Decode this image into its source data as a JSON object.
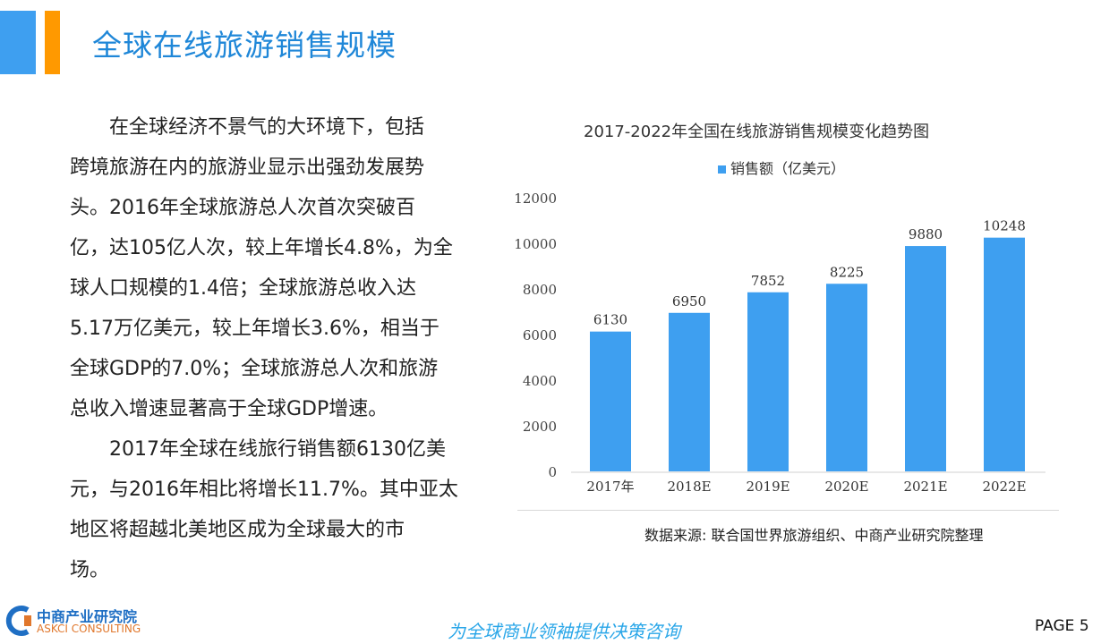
{
  "header": {
    "title": "全球在线旅游销售规模"
  },
  "body": {
    "lines": [
      "　　在全球经济不景气的大环境下，包括",
      "跨境旅游在内的旅游业显示出强劲发展势",
      "头。2016年全球旅游总人次首次突破百",
      "亿，达105亿人次，较上年增长4.8%，为全",
      "球人口规模的1.4倍；全球旅游总收入达",
      "5.17万亿美元，较上年增长3.6%，相当于",
      "全球GDP的7.0%；全球旅游总人次和旅游",
      "总收入增速显著高于全球GDP增速。",
      "　　2017年全球在线旅行销售额6130亿美",
      "元，与2016年相比将增长11.7%。其中亚太",
      "地区将超越北美地区成为全球最大的市",
      "场。"
    ]
  },
  "chart_data": {
    "type": "bar",
    "title": "2017-2022年全国在线旅游销售规模变化趋势图",
    "categories": [
      "2017年",
      "2018E",
      "2019E",
      "2020E",
      "2021E",
      "2022E"
    ],
    "series": [
      {
        "name": "销售额（亿美元）",
        "values": [
          6130,
          6950,
          7852,
          8225,
          9880,
          10248
        ]
      }
    ],
    "ylim": [
      0,
      12000
    ],
    "yticks": [
      0,
      2000,
      4000,
      6000,
      8000,
      10000,
      12000
    ],
    "color": "#3e9ff0",
    "legend": "top"
  },
  "source": "数据来源: 联合国世界旅游组织、中商产业研究院整理",
  "footer": {
    "logo_cn": "中商产业研究院",
    "logo_en": "ASKCI CONSULTING",
    "slogan": "为全球商业领袖提供决策咨询",
    "page": "PAGE  5"
  }
}
